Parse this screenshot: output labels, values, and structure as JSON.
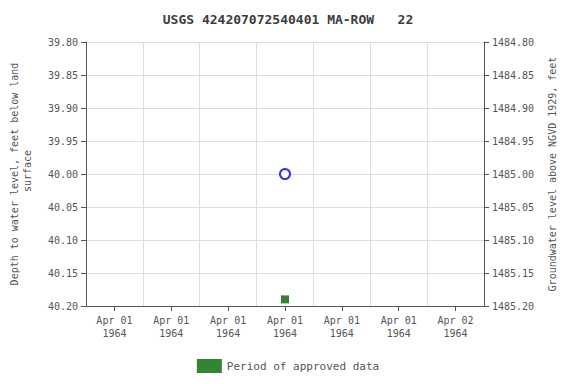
{
  "chart_data": {
    "type": "scatter",
    "title": "USGS 424207072540401 MA-ROW   22",
    "ylabel": "Depth to water level, feet below land\n surface",
    "y2label": "Groundwater level above NGVD 1929, feet",
    "categories": [
      "Apr 01\n1964",
      "Apr 01\n1964",
      "Apr 01\n1964",
      "Apr 01\n1964",
      "Apr 01\n1964",
      "Apr 01\n1964",
      "Apr 02\n1964"
    ],
    "series": [
      {
        "color": "#0000cc",
        "marker": "circle_open",
        "values": [
          null,
          null,
          null,
          40.0,
          null,
          null,
          null
        ]
      },
      {
        "name": "Period of approved data",
        "color": "#006600",
        "marker": "square",
        "values": [
          null,
          null,
          null,
          40.19,
          null,
          null,
          null
        ]
      }
    ],
    "ylim": [
      40.2,
      39.8
    ],
    "yticks": [
      {
        "value": 39.8,
        "label": "39.80"
      },
      {
        "value": 39.85,
        "label": "39.85"
      },
      {
        "value": 39.9,
        "label": "39.90"
      },
      {
        "value": 39.95,
        "label": "39.95"
      },
      {
        "value": 40.0,
        "label": "40.00"
      },
      {
        "value": 40.05,
        "label": "40.05"
      },
      {
        "value": 40.1,
        "label": "40.10"
      },
      {
        "value": 40.15,
        "label": "40.15"
      },
      {
        "value": 40.2,
        "label": "40.20"
      }
    ],
    "y2lim": [
      1485.2,
      1484.8
    ],
    "y2ticks": [
      {
        "value": 1485.2,
        "label": "1485.20"
      },
      {
        "value": 1485.15,
        "label": "1485.15"
      },
      {
        "value": 1485.1,
        "label": "1485.10"
      },
      {
        "value": 1485.05,
        "label": "1485.05"
      },
      {
        "value": 1485.0,
        "label": "1485.00"
      },
      {
        "value": 1484.95,
        "label": "1484.95"
      },
      {
        "value": 1484.9,
        "label": "1484.90"
      },
      {
        "value": 1484.85,
        "label": "1484.85"
      },
      {
        "value": 1484.8,
        "label": "1484.80"
      }
    ],
    "grid": true,
    "legend": "bottom"
  }
}
